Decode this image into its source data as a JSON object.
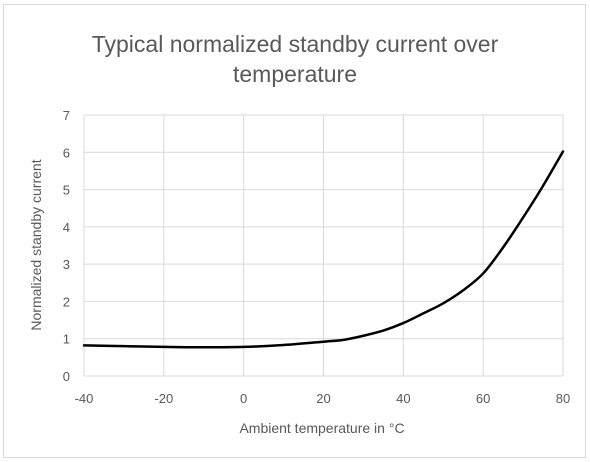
{
  "chart_data": {
    "type": "line",
    "title_lines": [
      "Typical normalized standby current over",
      "temperature"
    ],
    "xlabel": "Ambient temperature in °C",
    "ylabel": "Normalized standby current",
    "xlim": [
      -40,
      80
    ],
    "ylim": [
      0,
      7
    ],
    "x_ticks": [
      -40,
      -20,
      0,
      20,
      40,
      60,
      80
    ],
    "y_ticks": [
      0,
      1,
      2,
      3,
      4,
      5,
      6,
      7
    ],
    "grid": true,
    "legend": "none",
    "series": [
      {
        "color": "#000000",
        "x": [
          -40,
          -30,
          -20,
          -10,
          0,
          10,
          20,
          25,
          30,
          35,
          40,
          45,
          50,
          55,
          60,
          65,
          70,
          75,
          80
        ],
        "y": [
          0.82,
          0.8,
          0.78,
          0.77,
          0.78,
          0.83,
          0.92,
          0.97,
          1.08,
          1.22,
          1.42,
          1.68,
          1.95,
          2.3,
          2.75,
          3.45,
          4.25,
          5.1,
          6.02
        ]
      }
    ]
  },
  "colors": {
    "grid": "#d9d9d9",
    "text": "#595959",
    "line": "#000000"
  }
}
